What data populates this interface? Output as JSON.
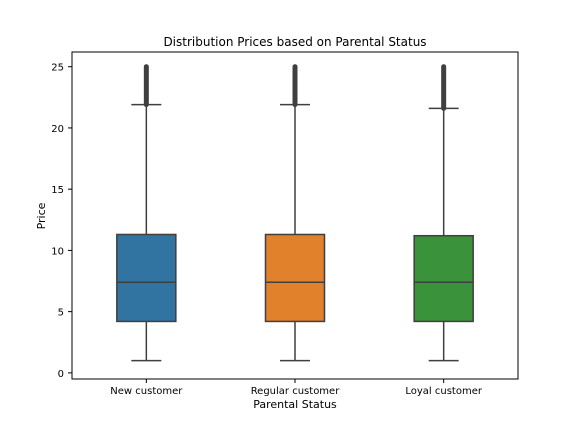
{
  "chart_data": {
    "type": "box",
    "title": "Distribution Prices based on Parental Status",
    "xlabel": "Parental Status",
    "ylabel": "Price",
    "ylim": [
      -0.5,
      26.2
    ],
    "yticks": [
      0,
      5,
      10,
      15,
      20,
      25
    ],
    "grid": false,
    "legend": "none",
    "categories": [
      "New customer",
      "Regular customer",
      "Loyal customer"
    ],
    "boxes": [
      {
        "category": "New customer",
        "min": 1.0,
        "q1": 4.2,
        "median": 7.4,
        "q3": 11.3,
        "whisker_high": 21.9,
        "outliers_range": [
          21.9,
          25.0
        ],
        "color": "#3274a1"
      },
      {
        "category": "Regular customer",
        "min": 1.0,
        "q1": 4.2,
        "median": 7.4,
        "q3": 11.3,
        "whisker_high": 21.9,
        "outliers_range": [
          21.9,
          25.0
        ],
        "color": "#e1812c"
      },
      {
        "category": "Loyal customer",
        "min": 1.0,
        "q1": 4.2,
        "median": 7.4,
        "q3": 11.2,
        "whisker_high": 21.6,
        "outliers_range": [
          21.6,
          25.0
        ],
        "color": "#3a923a"
      }
    ]
  }
}
